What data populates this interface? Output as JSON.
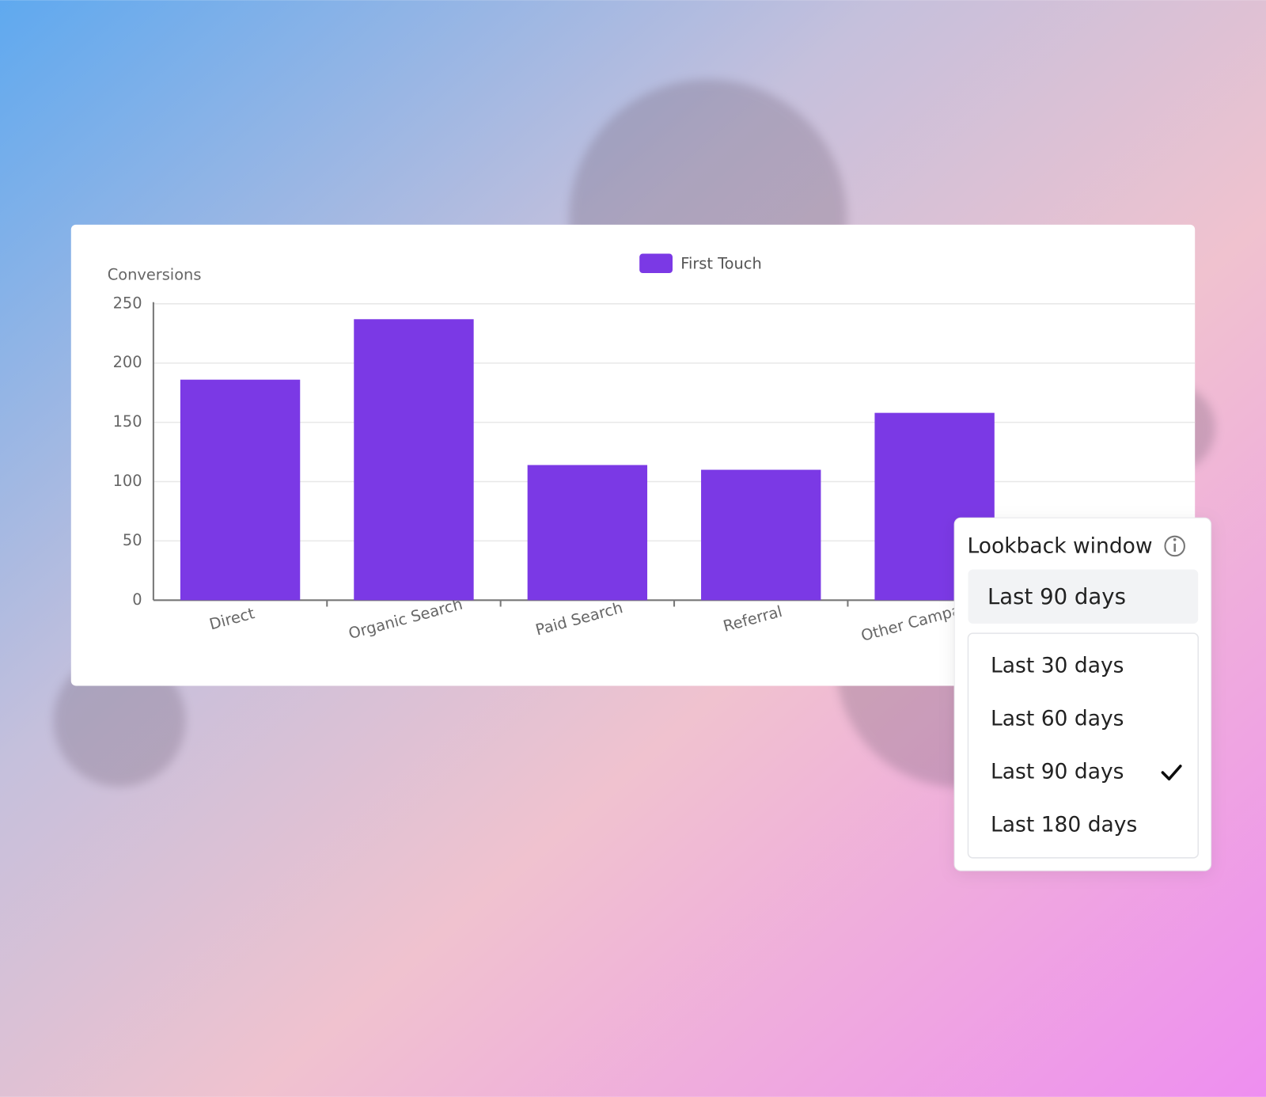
{
  "chart_data": {
    "type": "bar",
    "y_label": "Conversions",
    "categories": [
      "Direct",
      "Organic Search",
      "Paid Search",
      "Referral",
      "Other Campaigns",
      null
    ],
    "series": [
      {
        "name": "First Touch",
        "color": "#7b39e5",
        "values": [
          186,
          237,
          114,
          110,
          158,
          null
        ]
      }
    ],
    "ylim": [
      0,
      250
    ],
    "yticks": [
      0,
      50,
      100,
      150,
      200,
      250
    ],
    "grid": true
  },
  "dropdown": {
    "title": "Lookback window",
    "selected": "Last 90 days",
    "options": [
      "Last 30 days",
      "Last 60 days",
      "Last 90 days",
      "Last 180 days"
    ]
  }
}
